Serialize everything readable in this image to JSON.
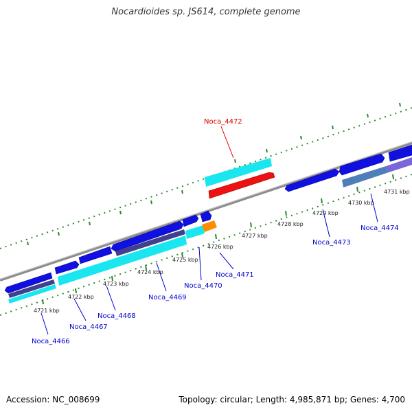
{
  "title": "Nocardioides sp. JS614, complete genome",
  "footer": {
    "accession": "Accession: NC_008699",
    "summary": "Topology: circular; Length: 4,985,871 bp; Genes: 4,700"
  },
  "kbp_labels": [
    "4721 kbp",
    "4722 kbp",
    "4723 kbp",
    "4724 kbp",
    "4725 kbp",
    "4726 kbp",
    "4727 kbp",
    "4728 kbp",
    "4729 kbp",
    "4730 kbp",
    "4731 kbp"
  ],
  "gene_labels": [
    "Noca_4466",
    "Noca_4467",
    "Noca_4468",
    "Noca_4469",
    "Noca_4470",
    "Noca_4471",
    "Noca_4472",
    "Noca_4473",
    "Noca_4474"
  ],
  "colors": {
    "backbone": "#8c8c8c",
    "cds_blue": "#1010e0",
    "cds_cyan": "#19e6ee",
    "cds_red": "#ee1111",
    "cds_orange": "#ff8c00",
    "cds_dark": "#40408c",
    "cds_steel": "#4f7fb8",
    "cds_violet": "#7a66d8",
    "tick_green": "#2a8a2a",
    "label_blue": "#0000cc",
    "label_red": "#dd0000"
  }
}
